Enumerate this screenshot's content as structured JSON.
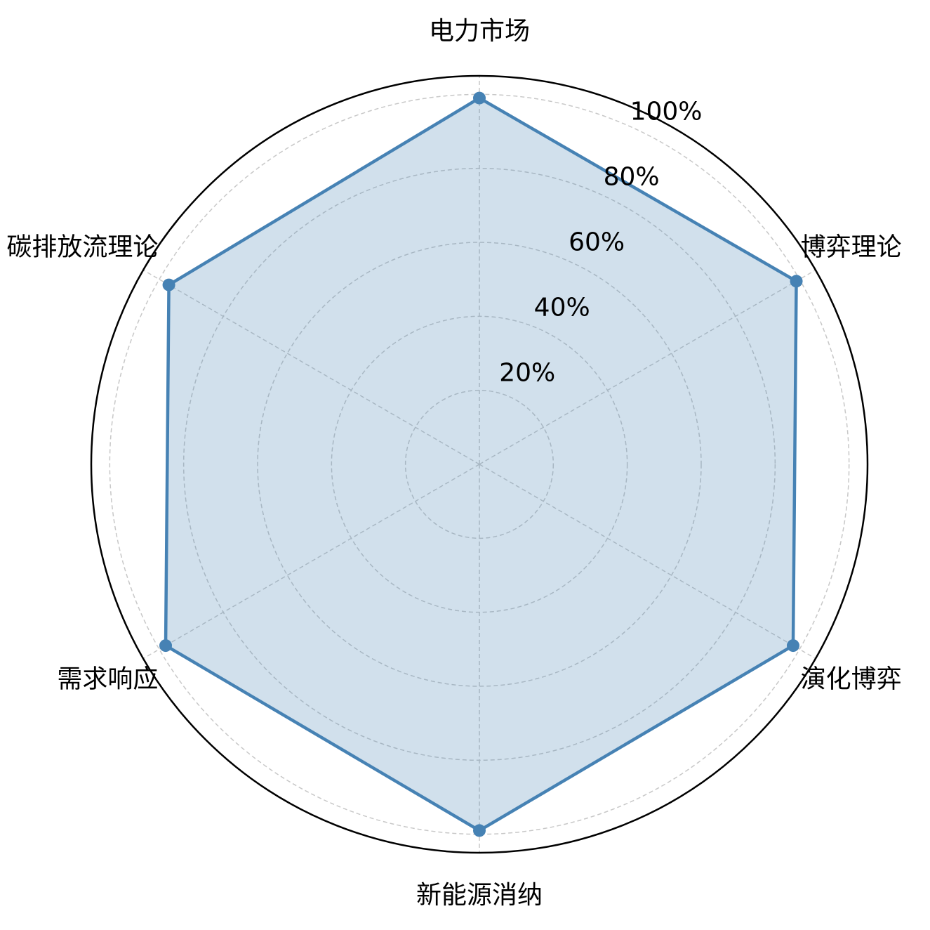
{
  "chart_data": {
    "type": "radar",
    "categories": [
      "电力市场",
      "博弈理论",
      "演化博弈",
      "新能源消纳",
      "需求响应",
      "碳排放流理论"
    ],
    "series": [
      {
        "color": "#4682b4",
        "values": [
          99,
          99,
          98,
          99,
          98,
          97
        ]
      }
    ],
    "ylim": [
      0,
      105
    ],
    "yticks": [
      {
        "value": 20,
        "label": "20%"
      },
      {
        "value": 40,
        "label": "40%"
      },
      {
        "value": 60,
        "label": "60%"
      },
      {
        "value": 80,
        "label": "80%"
      },
      {
        "value": 100,
        "label": "100%"
      }
    ],
    "grid": true
  }
}
